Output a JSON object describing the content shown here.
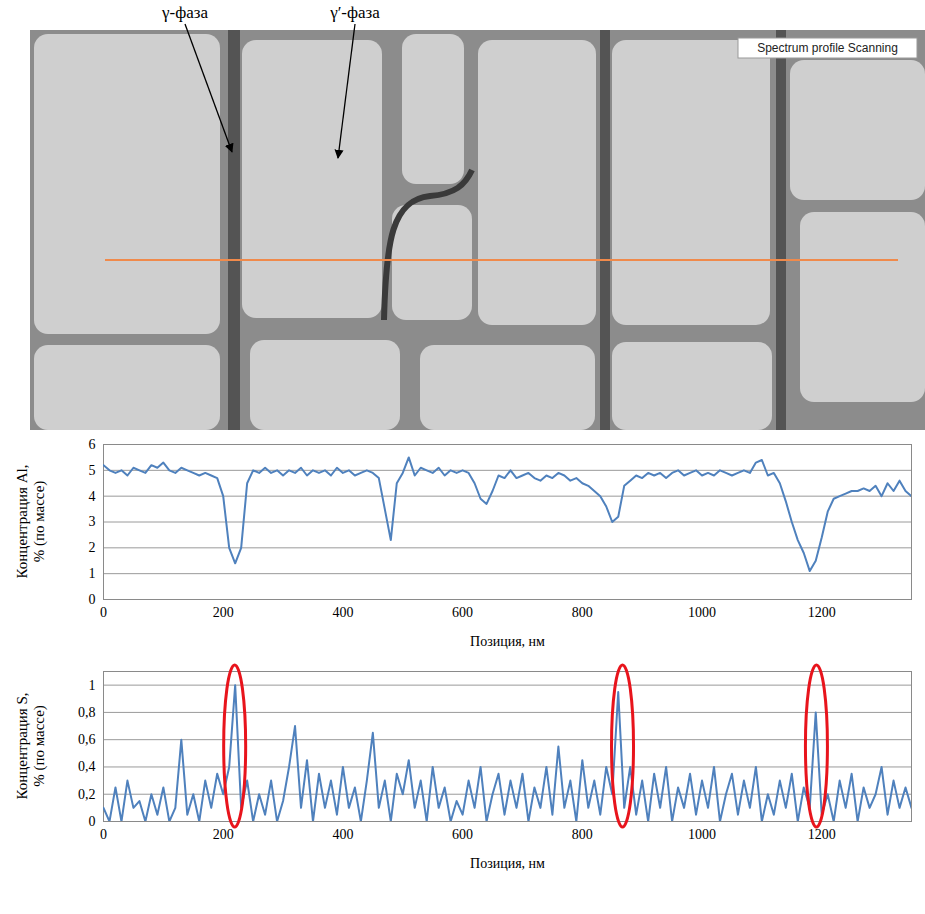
{
  "micrograph": {
    "labels": [
      "γ-фаза",
      "γ′-фаза"
    ],
    "badge": "Spectrum profile Scanning"
  },
  "chart_data": [
    {
      "type": "line",
      "x_label": "Позиция, нм",
      "y_label": "Концентрация Al, % (по массе)",
      "xlim": [
        0,
        1350
      ],
      "xticks": [
        0,
        200,
        400,
        600,
        800,
        1000,
        1200
      ],
      "ylim": [
        0,
        6
      ],
      "yticks": [
        0,
        1,
        2,
        3,
        4,
        5,
        6
      ],
      "grid": true,
      "color": "#4f81bd",
      "x": [
        0,
        10,
        20,
        30,
        40,
        50,
        60,
        70,
        80,
        90,
        100,
        110,
        120,
        130,
        140,
        150,
        160,
        170,
        180,
        190,
        200,
        210,
        220,
        230,
        240,
        250,
        260,
        270,
        280,
        290,
        300,
        310,
        320,
        330,
        340,
        350,
        360,
        370,
        380,
        390,
        400,
        410,
        420,
        430,
        440,
        450,
        460,
        470,
        480,
        490,
        500,
        510,
        520,
        530,
        540,
        550,
        560,
        570,
        580,
        590,
        600,
        610,
        620,
        630,
        640,
        650,
        660,
        670,
        680,
        690,
        700,
        710,
        720,
        730,
        740,
        750,
        760,
        770,
        780,
        790,
        800,
        810,
        820,
        830,
        840,
        850,
        860,
        870,
        880,
        890,
        900,
        910,
        920,
        930,
        940,
        950,
        960,
        970,
        980,
        990,
        1000,
        1010,
        1020,
        1030,
        1040,
        1050,
        1060,
        1070,
        1080,
        1090,
        1100,
        1110,
        1120,
        1130,
        1140,
        1150,
        1160,
        1170,
        1180,
        1190,
        1200,
        1210,
        1220,
        1230,
        1240,
        1250,
        1260,
        1270,
        1280,
        1290,
        1300,
        1310,
        1320,
        1330,
        1340,
        1350
      ],
      "values": [
        5.2,
        5.0,
        4.9,
        5.0,
        4.8,
        5.1,
        5.0,
        4.9,
        5.2,
        5.1,
        5.3,
        5.0,
        4.9,
        5.1,
        5.0,
        4.9,
        4.8,
        4.9,
        4.8,
        4.7,
        4.0,
        2.0,
        1.4,
        2.0,
        4.5,
        5.0,
        4.9,
        5.1,
        4.9,
        5.0,
        4.8,
        5.0,
        4.9,
        5.1,
        4.8,
        5.0,
        4.9,
        5.0,
        4.8,
        5.1,
        4.9,
        5.0,
        4.8,
        4.9,
        5.0,
        4.9,
        4.7,
        3.5,
        2.3,
        4.5,
        4.9,
        5.5,
        4.8,
        5.1,
        5.0,
        4.9,
        5.1,
        4.8,
        5.0,
        4.9,
        5.0,
        4.9,
        4.5,
        3.9,
        3.7,
        4.2,
        4.8,
        4.7,
        5.0,
        4.7,
        4.8,
        4.9,
        4.7,
        4.6,
        4.8,
        4.7,
        4.9,
        4.8,
        4.6,
        4.7,
        4.5,
        4.4,
        4.2,
        4.0,
        3.6,
        3.0,
        3.2,
        4.4,
        4.6,
        4.8,
        4.7,
        4.9,
        4.8,
        4.9,
        4.7,
        4.9,
        5.0,
        4.8,
        4.9,
        5.0,
        4.8,
        4.9,
        4.8,
        5.0,
        4.9,
        4.8,
        4.9,
        5.0,
        4.9,
        5.3,
        5.4,
        4.8,
        4.9,
        4.5,
        3.8,
        3.0,
        2.3,
        1.8,
        1.1,
        1.5,
        2.4,
        3.4,
        3.9,
        4.0,
        4.1,
        4.2,
        4.2,
        4.3,
        4.2,
        4.4,
        4.0,
        4.5,
        4.2,
        4.6,
        4.2,
        4.0
      ]
    },
    {
      "type": "line",
      "x_label": "Позиция, нм",
      "y_label": "Концентрация S, % (по массе)",
      "xlim": [
        0,
        1350
      ],
      "xticks": [
        0,
        200,
        400,
        600,
        800,
        1000,
        1200
      ],
      "ylim": [
        0,
        1.1
      ],
      "yticks": [
        0,
        {
          "value": 0.2,
          "label": "0,2"
        },
        {
          "value": 0.4,
          "label": "0,4"
        },
        {
          "value": 0.6,
          "label": "0,6"
        },
        {
          "value": 0.8,
          "label": "0,8"
        },
        1
      ],
      "grid": true,
      "color": "#4f81bd",
      "annotations": [
        {
          "shape": "ellipse",
          "x": 220,
          "color": "#e8141c"
        },
        {
          "shape": "ellipse",
          "x": 868,
          "color": "#e8141c"
        },
        {
          "shape": "ellipse",
          "x": 1192,
          "color": "#e8141c"
        }
      ],
      "x": [
        0,
        10,
        20,
        30,
        40,
        50,
        60,
        70,
        80,
        90,
        100,
        110,
        120,
        130,
        140,
        150,
        160,
        170,
        180,
        190,
        200,
        210,
        220,
        230,
        240,
        250,
        260,
        270,
        280,
        290,
        300,
        310,
        320,
        330,
        340,
        350,
        360,
        370,
        380,
        390,
        400,
        410,
        420,
        430,
        440,
        450,
        460,
        470,
        480,
        490,
        500,
        510,
        520,
        530,
        540,
        550,
        560,
        570,
        580,
        590,
        600,
        610,
        620,
        630,
        640,
        650,
        660,
        670,
        680,
        690,
        700,
        710,
        720,
        730,
        740,
        750,
        760,
        770,
        780,
        790,
        800,
        810,
        820,
        830,
        840,
        850,
        860,
        870,
        880,
        890,
        900,
        910,
        920,
        930,
        940,
        950,
        960,
        970,
        980,
        990,
        1000,
        1010,
        1020,
        1030,
        1040,
        1050,
        1060,
        1070,
        1080,
        1090,
        1100,
        1110,
        1120,
        1130,
        1140,
        1150,
        1160,
        1170,
        1180,
        1190,
        1200,
        1210,
        1220,
        1230,
        1240,
        1250,
        1260,
        1270,
        1280,
        1290,
        1300,
        1310,
        1320,
        1330,
        1340,
        1350
      ],
      "values": [
        0.1,
        0,
        0.25,
        0,
        0.3,
        0.1,
        0.15,
        0,
        0.2,
        0.05,
        0.25,
        0,
        0.1,
        0.6,
        0.05,
        0.2,
        0,
        0.3,
        0.1,
        0.35,
        0.2,
        0.4,
        1.0,
        0.1,
        0.3,
        0,
        0.2,
        0.05,
        0.3,
        0,
        0.15,
        0.4,
        0.7,
        0.1,
        0.45,
        0,
        0.35,
        0.1,
        0.3,
        0.05,
        0.4,
        0.1,
        0.25,
        0,
        0.3,
        0.65,
        0.1,
        0.3,
        0,
        0.35,
        0.2,
        0.45,
        0.1,
        0.3,
        0,
        0.4,
        0.1,
        0.25,
        0,
        0.15,
        0.05,
        0.3,
        0.1,
        0.4,
        0,
        0.2,
        0.35,
        0.05,
        0.3,
        0.1,
        0.35,
        0,
        0.25,
        0.1,
        0.4,
        0.05,
        0.55,
        0.1,
        0.3,
        0,
        0.45,
        0.1,
        0.3,
        0.05,
        0.4,
        0.2,
        0.95,
        0.1,
        0.4,
        0.05,
        0.3,
        0,
        0.35,
        0.1,
        0.4,
        0,
        0.25,
        0.1,
        0.35,
        0.05,
        0.3,
        0.1,
        0.4,
        0,
        0.2,
        0.35,
        0.05,
        0.3,
        0.1,
        0.4,
        0,
        0.2,
        0.05,
        0.3,
        0.1,
        0.35,
        0,
        0.25,
        0.1,
        0.8,
        0.05,
        0.2,
        0,
        0.3,
        0.1,
        0.35,
        0,
        0.25,
        0.1,
        0.2,
        0.4,
        0.05,
        0.3,
        0.1,
        0.25,
        0.1
      ]
    }
  ]
}
